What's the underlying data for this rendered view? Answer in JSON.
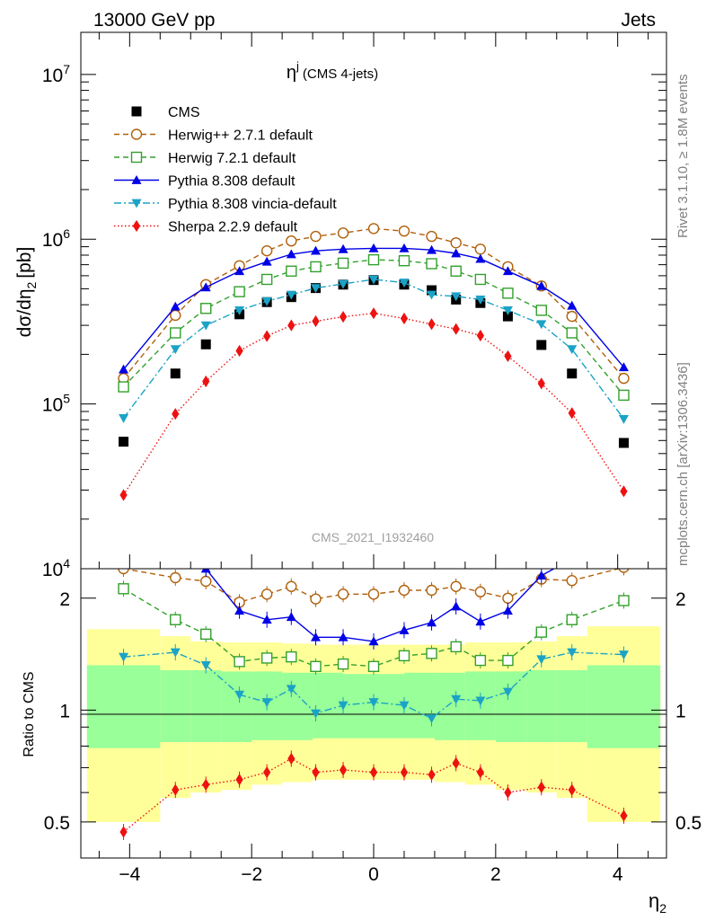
{
  "header": {
    "left": "13000 GeV pp",
    "right": "Jets",
    "side_top": "Rivet 3.1.10, ≥ 1.8M events",
    "side_bottom": "mcplots.cern.ch [arXiv:1306.3436]"
  },
  "chart_data": {
    "type": "line",
    "title": "η",
    "title_sup": "j",
    "title_suffix": "(CMS 4-jets)",
    "watermark": "CMS_2021_I1932460",
    "xlabel": "η",
    "xlabel_sub": "2",
    "ylabel": "dσ/dη",
    "ylabel_sub": "2",
    "ylabel_unit": "[pb]",
    "ratio_ylabel": "Ratio to CMS",
    "xlim": [
      -4.8,
      4.8
    ],
    "ylim": [
      10000,
      18000000
    ],
    "yscale": "log",
    "ratio_ylim": [
      0.4,
      2.4
    ],
    "legend_position": "top-left",
    "x_ticks": [
      "−4",
      "−2",
      "0",
      "2",
      "4"
    ],
    "y_ticks": [
      "10^4",
      "10^5",
      "10^6",
      "10^7"
    ],
    "ratio_ticks": [
      "0.5",
      "1",
      "2"
    ],
    "x": [
      -4.1,
      -3.25,
      -2.75,
      -2.2,
      -1.75,
      -1.35,
      -0.95,
      -0.5,
      0,
      0.5,
      0.95,
      1.35,
      1.75,
      2.2,
      2.75,
      3.25,
      4.1
    ],
    "bands": {
      "edges": [
        -4.7,
        -3.5,
        -3.0,
        -2.5,
        -2.0,
        -1.5,
        -1.0,
        -0.5,
        0,
        0.5,
        1.0,
        1.5,
        2.0,
        2.5,
        3.0,
        3.5,
        4.7
      ],
      "inner_lo": [
        0.79,
        0.82,
        0.82,
        0.82,
        0.83,
        0.83,
        0.84,
        0.84,
        0.84,
        0.84,
        0.83,
        0.83,
        0.82,
        0.82,
        0.82,
        0.79
      ],
      "inner_hi": [
        1.32,
        1.28,
        1.28,
        1.27,
        1.27,
        1.26,
        1.26,
        1.25,
        1.25,
        1.26,
        1.26,
        1.27,
        1.27,
        1.28,
        1.28,
        1.32
      ],
      "outer_lo": [
        0.5,
        0.58,
        0.6,
        0.61,
        0.63,
        0.64,
        0.65,
        0.65,
        0.65,
        0.65,
        0.64,
        0.63,
        0.61,
        0.6,
        0.58,
        0.5
      ],
      "outer_hi": [
        1.65,
        1.58,
        1.53,
        1.52,
        1.52,
        1.51,
        1.5,
        1.5,
        1.5,
        1.5,
        1.5,
        1.52,
        1.52,
        1.53,
        1.58,
        1.68
      ],
      "inner_color": "#99ff99",
      "outer_color": "#ffff99"
    },
    "series": [
      {
        "name": "CMS",
        "color": "#000000",
        "marker": "square-filled",
        "line": "none",
        "values": [
          59000,
          153000,
          230000,
          350000,
          415000,
          445000,
          505000,
          530000,
          565000,
          530000,
          490000,
          430000,
          410000,
          340000,
          228000,
          153000,
          58000
        ]
      },
      {
        "name": "Herwig++ 2.7.1 default",
        "color": "#b0600a",
        "marker": "circle-open",
        "line": "dashed",
        "values": [
          143000,
          345000,
          530000,
          690000,
          850000,
          975000,
          1040000,
          1090000,
          1160000,
          1120000,
          1040000,
          950000,
          870000,
          680000,
          520000,
          340000,
          143000
        ],
        "ratio": [
          2.4,
          2.27,
          2.22,
          1.95,
          2.05,
          2.15,
          1.99,
          2.05,
          2.05,
          2.1,
          2.1,
          2.15,
          2.08,
          2.0,
          2.25,
          2.23,
          2.42
        ]
      },
      {
        "name": "Herwig 7.2.1 default",
        "color": "#33a02c",
        "marker": "square-open",
        "line": "dashed",
        "values": [
          127000,
          270000,
          380000,
          480000,
          570000,
          640000,
          680000,
          715000,
          750000,
          740000,
          710000,
          640000,
          570000,
          470000,
          370000,
          270000,
          113000
        ],
        "ratio": [
          2.12,
          1.75,
          1.6,
          1.35,
          1.38,
          1.39,
          1.31,
          1.33,
          1.31,
          1.4,
          1.42,
          1.48,
          1.36,
          1.36,
          1.62,
          1.75,
          1.97
        ]
      },
      {
        "name": "Pythia 8.308 default",
        "color": "#0000e6",
        "marker": "triangle-up-filled",
        "line": "solid",
        "values": [
          162000,
          390000,
          510000,
          640000,
          730000,
          810000,
          850000,
          870000,
          880000,
          880000,
          860000,
          820000,
          760000,
          640000,
          520000,
          395000,
          167000
        ],
        "ratio": [
          2.7,
          2.6,
          2.4,
          1.85,
          1.75,
          1.78,
          1.57,
          1.57,
          1.53,
          1.64,
          1.72,
          1.9,
          1.73,
          1.85,
          2.3,
          2.55,
          2.8
        ]
      },
      {
        "name": "Pythia 8.308 vincia-default",
        "color": "#1ba3c6",
        "marker": "triangle-down-filled",
        "line": "dashdot",
        "values": [
          82000,
          215000,
          300000,
          370000,
          420000,
          460000,
          505000,
          535000,
          570000,
          545000,
          460000,
          450000,
          430000,
          370000,
          305000,
          215000,
          81000
        ],
        "ratio": [
          1.39,
          1.43,
          1.32,
          1.1,
          1.05,
          1.14,
          0.98,
          1.03,
          1.05,
          1.03,
          0.95,
          1.07,
          1.06,
          1.12,
          1.37,
          1.43,
          1.41
        ]
      },
      {
        "name": "Sherpa 2.2.9 default",
        "color": "#ee1111",
        "marker": "diamond-filled",
        "line": "dotted",
        "values": [
          28000,
          87000,
          137000,
          210000,
          258000,
          300000,
          318000,
          338000,
          355000,
          330000,
          305000,
          285000,
          260000,
          195000,
          133000,
          88000,
          29500
        ],
        "ratio": [
          0.47,
          0.61,
          0.63,
          0.65,
          0.68,
          0.74,
          0.68,
          0.69,
          0.68,
          0.68,
          0.67,
          0.72,
          0.68,
          0.6,
          0.62,
          0.61,
          0.52
        ]
      }
    ]
  }
}
